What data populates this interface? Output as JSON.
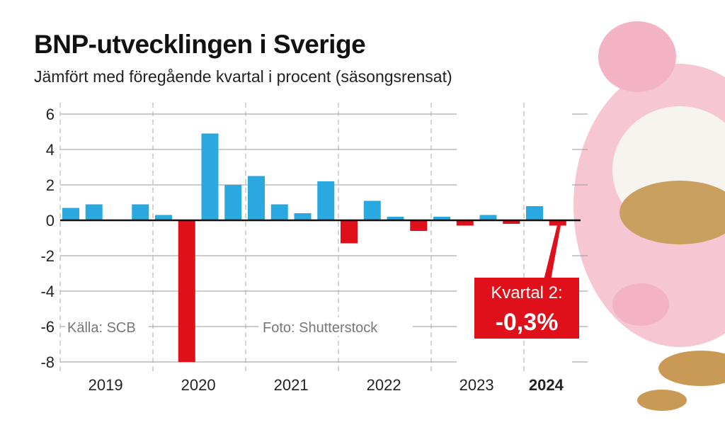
{
  "title": "BNP-utvecklingen i Sverige",
  "subtitle": "Jämfört med föregående kvartal i procent (säsongsrensat)",
  "source": "Källa: SCB",
  "photo_credit": "Foto: Shutterstock",
  "callout": {
    "line1": "Kvartal 2:",
    "line2": "-0,3%"
  },
  "colors": {
    "positive": "#2aa8e0",
    "negative": "#e0101a",
    "callout_bg": "#e0101a"
  },
  "chart_data": {
    "type": "bar",
    "title": "BNP-utvecklingen i Sverige",
    "subtitle": "Jämfört med föregående kvartal i procent (säsongsrensat)",
    "years": [
      "2019",
      "2020",
      "2021",
      "2022",
      "2023",
      "2024"
    ],
    "bold_year": "2024",
    "quarters_per_year": 4,
    "values": [
      0.7,
      0.9,
      0.0,
      0.9,
      0.3,
      -8.0,
      4.9,
      2.0,
      2.5,
      0.9,
      0.4,
      2.2,
      -1.3,
      1.1,
      0.2,
      -0.6,
      0.2,
      -0.3,
      0.3,
      -0.2,
      0.8,
      -0.3
    ],
    "yticks": [
      6,
      4,
      2,
      0,
      -2,
      -4,
      -6,
      -8
    ],
    "ylim": [
      -8.3,
      6.6
    ],
    "grid": true,
    "highlight_index": 21
  }
}
